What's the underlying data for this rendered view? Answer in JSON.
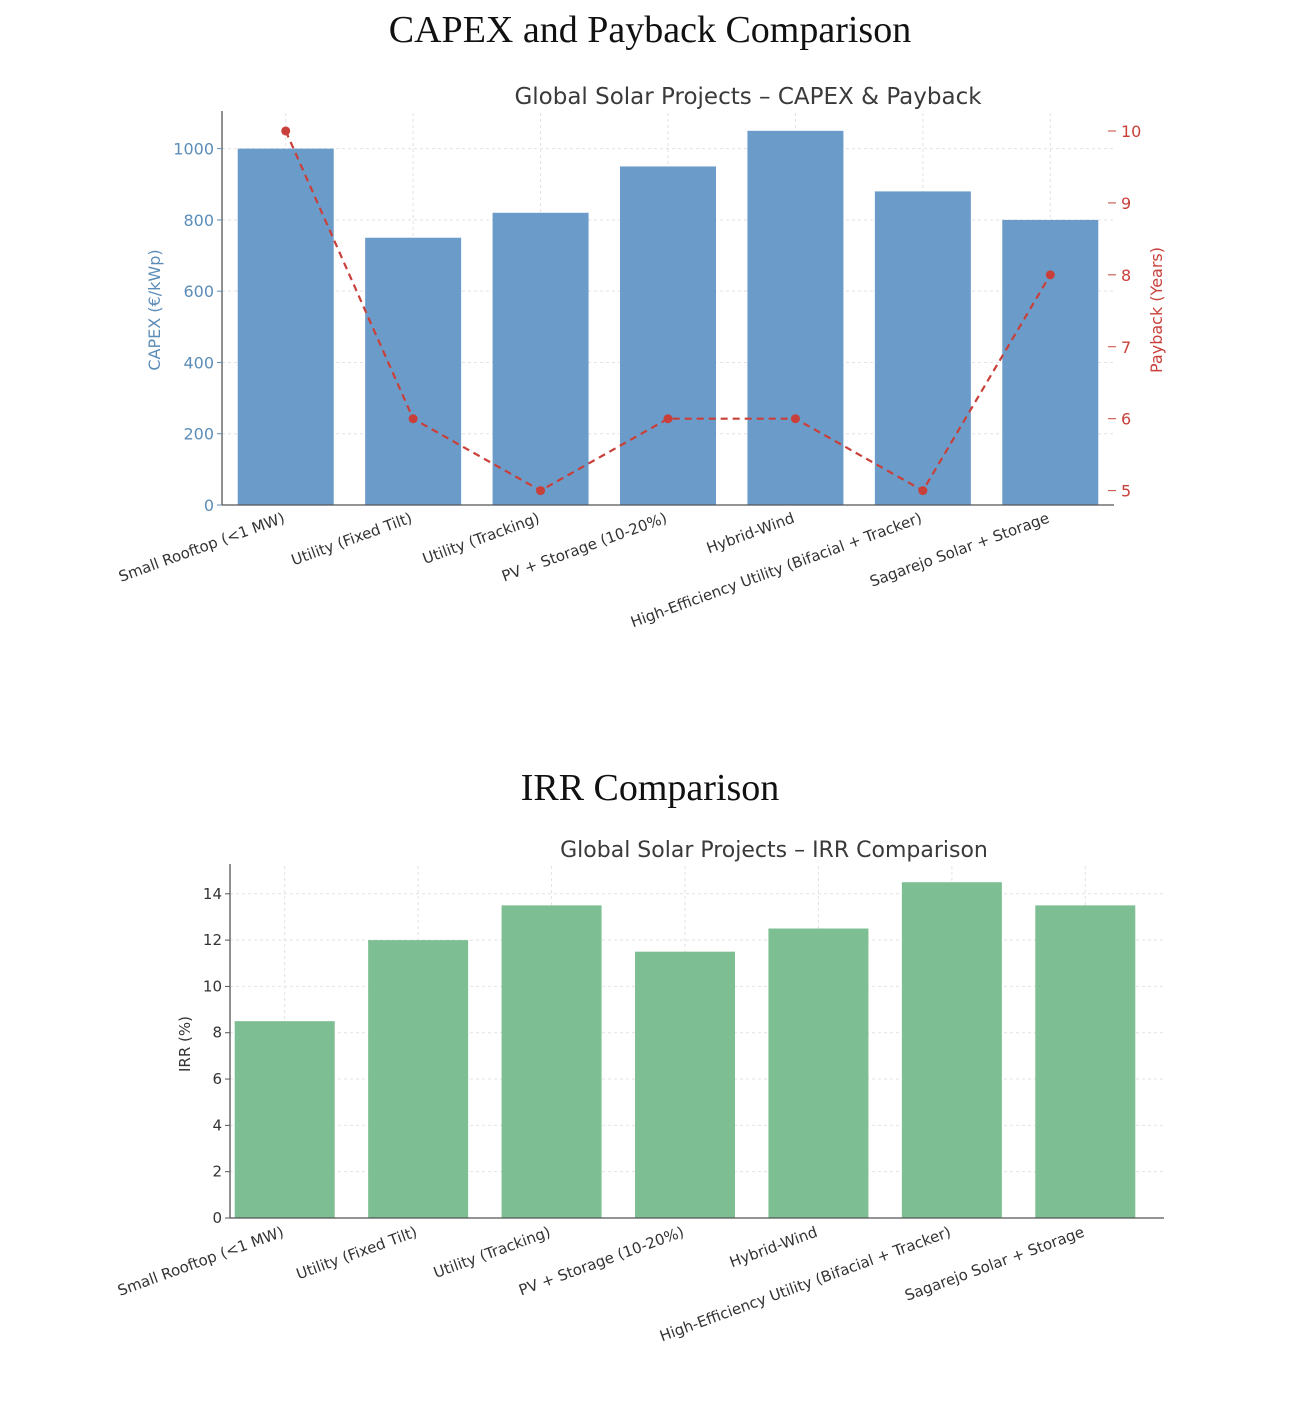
{
  "sections": [
    {
      "heading": "CAPEX and Payback Comparison"
    },
    {
      "heading": "IRR Comparison"
    }
  ],
  "chart_data": [
    {
      "type": "bar",
      "title": "Global Solar Projects – CAPEX & Payback",
      "categories": [
        "Small Rooftop (<1 MW)",
        "Utility (Fixed Tilt)",
        "Utility (Tracking)",
        "PV + Storage (10-20%)",
        "Hybrid-Wind",
        "High-Efficiency Utility (Bifacial + Tracker)",
        "Sagarejo Solar + Storage"
      ],
      "series": [
        {
          "type": "bar",
          "axis": "left",
          "color": "#6b9bc8",
          "values": [
            1000,
            750,
            820,
            950,
            1050,
            880,
            800
          ]
        },
        {
          "type": "line",
          "axis": "right",
          "style": "dashed",
          "marker": "circle",
          "color": "#c9403a",
          "values": [
            10,
            6,
            5,
            6,
            6,
            5,
            8
          ]
        }
      ],
      "ylabel": "CAPEX (€/kWp)",
      "ylabel_color": "#5b8db8",
      "y2label": "Payback (Years)",
      "y2label_color": "#c9403a",
      "yticks": [
        0,
        200,
        400,
        600,
        800,
        1000
      ],
      "y2ticks": [
        5,
        6,
        7,
        8,
        9,
        10
      ],
      "grid": true
    },
    {
      "type": "bar",
      "title": "Global Solar Projects – IRR Comparison",
      "categories": [
        "Small Rooftop (<1 MW)",
        "Utility (Fixed Tilt)",
        "Utility (Tracking)",
        "PV + Storage (10-20%)",
        "Hybrid-Wind",
        "High-Efficiency Utility (Bifacial + Tracker)",
        "Sagarejo Solar + Storage"
      ],
      "series": [
        {
          "type": "bar",
          "color": "#7dbf92",
          "values": [
            8.5,
            12,
            13.5,
            11.5,
            12.5,
            14.5,
            13.5
          ]
        }
      ],
      "ylabel": "IRR (%)",
      "yticks": [
        0,
        2,
        4,
        6,
        8,
        10,
        12,
        14
      ],
      "grid": true
    }
  ]
}
